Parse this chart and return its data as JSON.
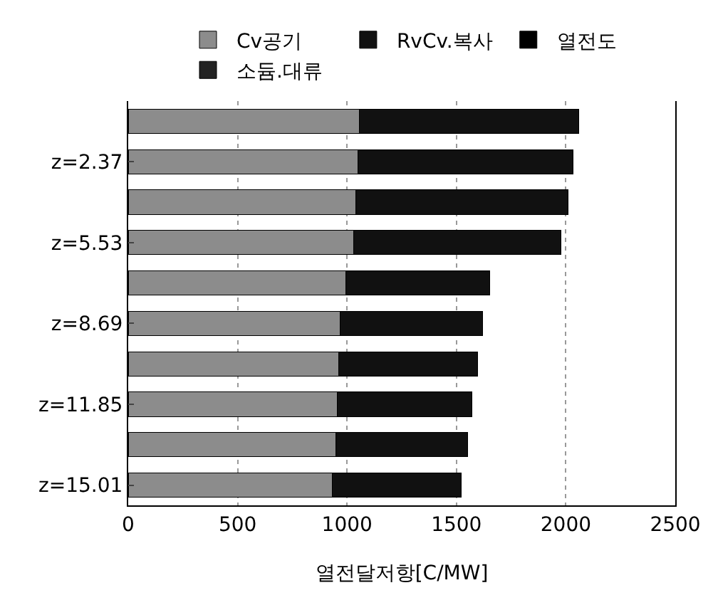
{
  "chart_data": {
    "type": "bar",
    "orientation": "horizontal",
    "stacked": true,
    "categories": [
      null,
      "z=2.37",
      null,
      "z=5.53",
      null,
      "z=8.69",
      null,
      "z=11.85",
      null,
      "z=15.01"
    ],
    "series": [
      {
        "name": "Cv공기",
        "color": "#8c8c8c",
        "values": [
          1057,
          1050,
          1040,
          1030,
          996,
          969,
          962,
          956,
          949,
          934
        ]
      },
      {
        "name": "RvCv.복사",
        "color": "#111111",
        "values": [
          1001,
          982,
          971,
          948,
          657,
          651,
          634,
          614,
          601,
          589
        ]
      },
      {
        "name": "열전도",
        "color": "#000000",
        "values": [
          0,
          0,
          0,
          0,
          0,
          0,
          0,
          0,
          0,
          0
        ]
      },
      {
        "name": "소듐.대류",
        "color": "#222222",
        "values": [
          0,
          0,
          0,
          0,
          0,
          0,
          0,
          0,
          0,
          0
        ]
      }
    ],
    "xlim": [
      0,
      2500
    ],
    "xticks": [
      0,
      500,
      1000,
      1500,
      2000,
      2500
    ],
    "xlabel": "열전달저항[C/MW]",
    "grid": "x",
    "legend": "top"
  }
}
